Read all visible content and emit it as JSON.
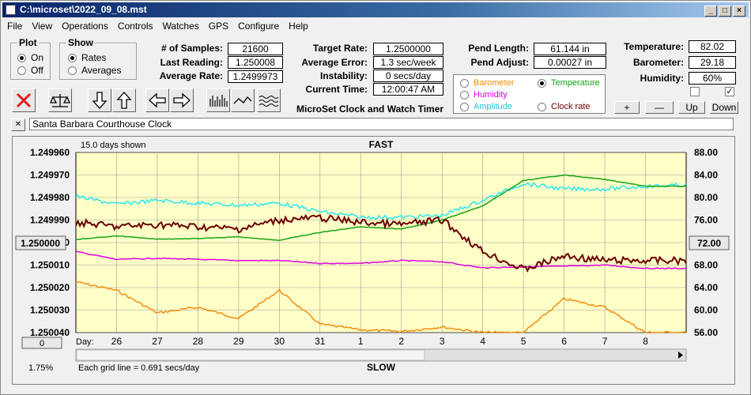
{
  "window": {
    "title": "C:\\microset\\2022_09_08.mst"
  },
  "menu": [
    "File",
    "View",
    "Operations",
    "Controls",
    "Watches",
    "GPS",
    "Configure",
    "Help"
  ],
  "plot": {
    "title": "Plot",
    "on": "On",
    "off": "Off"
  },
  "show": {
    "title": "Show",
    "rates": "Rates",
    "averages": "Averages"
  },
  "stats": [
    {
      "label": "# of Samples:",
      "value": "21600"
    },
    {
      "label": "Last Reading:",
      "value": "1.250008"
    },
    {
      "label": "Average Rate:",
      "value": "1.2499973"
    }
  ],
  "rates": [
    {
      "label": "Target Rate:",
      "value": "1.2500000"
    },
    {
      "label": "Average Error:",
      "value": "1.3 sec/week"
    },
    {
      "label": "Instability:",
      "value": "0 secs/day"
    },
    {
      "label": "Current Time:",
      "value": "12:00:47 AM"
    }
  ],
  "pend": [
    {
      "label": "Pend Length:",
      "value": "61.144 in"
    },
    {
      "label": "Pend Adjust:",
      "value": "0.00027 in"
    }
  ],
  "env": [
    {
      "label": "Temperature:",
      "value": "82.02"
    },
    {
      "label": "Barometer:",
      "value": "29.18"
    },
    {
      "label": "Humidity:",
      "value": "60%"
    }
  ],
  "app_label": "MicroSet Clock and Watch Timer",
  "legend": {
    "barometer": "Barometer",
    "temperature": "Temperature",
    "humidity": "Humidity",
    "amplitude": "Amplitude",
    "clock_rate": "Clock rate"
  },
  "adjust": {
    "plus": "+",
    "minus": "—",
    "up": "Up",
    "down": "Down"
  },
  "close_x": "✕",
  "description": "Santa Barbara Courthouse Clock",
  "colors": {
    "bg": "#ffffc8",
    "rate": "#6b0000",
    "temperature": "#16a316",
    "amplitude": "#2be6f0",
    "humidity": "#e000e0",
    "barometer": "#f28c0f"
  },
  "chart": {
    "days_shown": "15.0 days shown",
    "fast": "FAST",
    "slow": "SLOW",
    "day_label": "Day:",
    "grid_note": "Each grid line = 0.691 secs/day",
    "left_ticks": [
      "1.249960",
      "1.249970",
      "1.249980",
      "1.249990",
      "1.250000",
      "1.250010",
      "1.250020",
      "1.250030",
      "1.250040"
    ],
    "right_ticks": [
      "88.00",
      "84.00",
      "80.00",
      "76.00",
      "72.00",
      "68.00",
      "64.00",
      "60.00",
      "56.00"
    ],
    "left_center": "1.250000",
    "right_center": "72.00",
    "zero_button": "0",
    "percent": "1.75%",
    "days": [
      "26",
      "27",
      "28",
      "29",
      "30",
      "31",
      "1",
      "2",
      "3",
      "4",
      "5",
      "6",
      "7",
      "8"
    ]
  },
  "chart_data": {
    "type": "line",
    "x_days": [
      25.0,
      26.0,
      27.0,
      28.0,
      29.0,
      30.0,
      31.0,
      32.0,
      33.0,
      34.0,
      35.0,
      36.0,
      37.0,
      38.0,
      39.0,
      40.0
    ],
    "series": [
      {
        "name": "Clock rate",
        "axis": "left",
        "values": [
          1.249991,
          1.249993,
          1.249992,
          1.249993,
          1.249994,
          1.24999,
          1.249989,
          1.249991,
          1.249992,
          1.24999,
          1.250004,
          1.250012,
          1.250006,
          1.250008,
          1.250008,
          1.250008
        ]
      },
      {
        "name": "Temperature",
        "axis": "right",
        "values": [
          72.5,
          73.2,
          72.6,
          72.7,
          73.0,
          72.4,
          73.8,
          74.8,
          74.4,
          76.0,
          78.5,
          83.0,
          84.0,
          83.2,
          82.0,
          82.0
        ]
      },
      {
        "name": "Amplitude",
        "axis": "right",
        "values": [
          80.2,
          78.8,
          79.5,
          79.0,
          78.6,
          79.0,
          77.5,
          76.5,
          76.5,
          76.8,
          79.5,
          82.5,
          81.5,
          81.5,
          82.0,
          82.2
        ]
      },
      {
        "name": "Humidity",
        "axis": "right",
        "values": [
          70.4,
          69.0,
          69.2,
          69.0,
          68.8,
          68.8,
          68.3,
          68.3,
          68.8,
          68.6,
          67.5,
          67.7,
          67.8,
          68.0,
          67.4,
          67.4
        ]
      },
      {
        "name": "Barometer",
        "axis": "right",
        "values": [
          65.0,
          63.5,
          59.5,
          60.5,
          58.5,
          63.5,
          57.5,
          56.5,
          56.2,
          57.0,
          56.0,
          56.0,
          62.0,
          60.5,
          56.0,
          56.0
        ]
      }
    ],
    "y_left_range": [
      1.24996,
      1.25004
    ],
    "y_right_range": [
      56,
      88
    ],
    "grid": true
  }
}
